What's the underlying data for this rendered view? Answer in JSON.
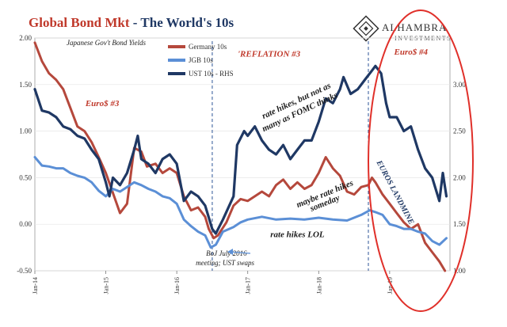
{
  "chart_data": {
    "type": "line",
    "title_part1": "Global Bond Mkt",
    "title_part2": " - The World's 10s",
    "subtitle": "Japanese Gov't Bond Yields",
    "logo": {
      "name": "ALHAMBRA",
      "sub": "INVESTMENTS"
    },
    "left_axis": {
      "ylim": [
        -0.5,
        2.0
      ],
      "ticks": [
        "2.00",
        "1.50",
        "1.00",
        "0.50",
        "0.00",
        "-0.50"
      ],
      "tick_values": [
        2.0,
        1.5,
        1.0,
        0.5,
        0.0,
        -0.5
      ]
    },
    "right_axis": {
      "ylim": [
        1.0,
        3.5
      ],
      "ticks": [
        "3.00",
        "2.50",
        "2.00",
        "1.50",
        "1.00"
      ],
      "tick_values": [
        3.0,
        2.5,
        2.0,
        1.5,
        1.0
      ]
    },
    "x_ticks": [
      {
        "label": "Jan-14",
        "t": 2014.0
      },
      {
        "label": "Jan-15",
        "t": 2015.0
      },
      {
        "label": "Jan-16",
        "t": 2016.0
      },
      {
        "label": "Jan-17",
        "t": 2017.0
      },
      {
        "label": "Jan-18",
        "t": 2018.0
      },
      {
        "label": "Jan-19",
        "t": 2019.0
      }
    ],
    "xlim": [
      2014.0,
      2019.85
    ],
    "series": [
      {
        "name": "Germany 10s",
        "color": "#b5483c",
        "axis": "left",
        "points": [
          [
            2014.0,
            1.95
          ],
          [
            2014.1,
            1.75
          ],
          [
            2014.2,
            1.62
          ],
          [
            2014.3,
            1.55
          ],
          [
            2014.4,
            1.45
          ],
          [
            2014.5,
            1.25
          ],
          [
            2014.6,
            1.05
          ],
          [
            2014.7,
            1.0
          ],
          [
            2014.8,
            0.88
          ],
          [
            2014.9,
            0.72
          ],
          [
            2015.0,
            0.55
          ],
          [
            2015.08,
            0.38
          ],
          [
            2015.2,
            0.12
          ],
          [
            2015.3,
            0.22
          ],
          [
            2015.4,
            0.82
          ],
          [
            2015.5,
            0.78
          ],
          [
            2015.58,
            0.62
          ],
          [
            2015.7,
            0.65
          ],
          [
            2015.8,
            0.55
          ],
          [
            2015.9,
            0.6
          ],
          [
            2016.0,
            0.55
          ],
          [
            2016.1,
            0.3
          ],
          [
            2016.2,
            0.15
          ],
          [
            2016.3,
            0.18
          ],
          [
            2016.4,
            0.08
          ],
          [
            2016.45,
            -0.05
          ],
          [
            2016.52,
            -0.15
          ],
          [
            2016.58,
            -0.12
          ],
          [
            2016.7,
            0.02
          ],
          [
            2016.8,
            0.2
          ],
          [
            2016.9,
            0.27
          ],
          [
            2017.0,
            0.25
          ],
          [
            2017.1,
            0.3
          ],
          [
            2017.2,
            0.35
          ],
          [
            2017.3,
            0.3
          ],
          [
            2017.4,
            0.42
          ],
          [
            2017.5,
            0.48
          ],
          [
            2017.6,
            0.38
          ],
          [
            2017.7,
            0.45
          ],
          [
            2017.8,
            0.38
          ],
          [
            2017.9,
            0.42
          ],
          [
            2018.0,
            0.55
          ],
          [
            2018.1,
            0.72
          ],
          [
            2018.2,
            0.6
          ],
          [
            2018.3,
            0.52
          ],
          [
            2018.4,
            0.35
          ],
          [
            2018.5,
            0.32
          ],
          [
            2018.6,
            0.4
          ],
          [
            2018.7,
            0.42
          ],
          [
            2018.75,
            0.5
          ],
          [
            2018.8,
            0.45
          ],
          [
            2018.9,
            0.32
          ],
          [
            2019.0,
            0.22
          ],
          [
            2019.1,
            0.12
          ],
          [
            2019.2,
            0.02
          ],
          [
            2019.3,
            -0.05
          ],
          [
            2019.4,
            0.0
          ],
          [
            2019.5,
            -0.2
          ],
          [
            2019.6,
            -0.3
          ],
          [
            2019.7,
            -0.4
          ],
          [
            2019.78,
            -0.5
          ]
        ]
      },
      {
        "name": "JGB 10s",
        "color": "#5b8fd6",
        "axis": "left",
        "points": [
          [
            2014.0,
            0.72
          ],
          [
            2014.1,
            0.63
          ],
          [
            2014.2,
            0.62
          ],
          [
            2014.3,
            0.6
          ],
          [
            2014.4,
            0.6
          ],
          [
            2014.5,
            0.55
          ],
          [
            2014.6,
            0.52
          ],
          [
            2014.7,
            0.5
          ],
          [
            2014.8,
            0.45
          ],
          [
            2014.9,
            0.36
          ],
          [
            2015.0,
            0.3
          ],
          [
            2015.1,
            0.38
          ],
          [
            2015.2,
            0.35
          ],
          [
            2015.3,
            0.4
          ],
          [
            2015.4,
            0.45
          ],
          [
            2015.5,
            0.42
          ],
          [
            2015.6,
            0.38
          ],
          [
            2015.7,
            0.35
          ],
          [
            2015.8,
            0.3
          ],
          [
            2015.9,
            0.28
          ],
          [
            2016.0,
            0.22
          ],
          [
            2016.1,
            0.05
          ],
          [
            2016.2,
            -0.02
          ],
          [
            2016.3,
            -0.08
          ],
          [
            2016.4,
            -0.12
          ],
          [
            2016.48,
            -0.25
          ],
          [
            2016.55,
            -0.22
          ],
          [
            2016.65,
            -0.08
          ],
          [
            2016.8,
            -0.03
          ],
          [
            2016.9,
            0.02
          ],
          [
            2017.0,
            0.05
          ],
          [
            2017.2,
            0.08
          ],
          [
            2017.4,
            0.05
          ],
          [
            2017.6,
            0.06
          ],
          [
            2017.8,
            0.05
          ],
          [
            2018.0,
            0.07
          ],
          [
            2018.2,
            0.05
          ],
          [
            2018.4,
            0.04
          ],
          [
            2018.6,
            0.1
          ],
          [
            2018.72,
            0.15
          ],
          [
            2018.8,
            0.13
          ],
          [
            2018.9,
            0.1
          ],
          [
            2019.0,
            0.0
          ],
          [
            2019.1,
            -0.02
          ],
          [
            2019.2,
            -0.05
          ],
          [
            2019.3,
            -0.05
          ],
          [
            2019.4,
            -0.08
          ],
          [
            2019.5,
            -0.1
          ],
          [
            2019.6,
            -0.18
          ],
          [
            2019.7,
            -0.22
          ],
          [
            2019.8,
            -0.15
          ]
        ]
      },
      {
        "name": "UST 10s - RHS",
        "color": "#1f3864",
        "axis": "right",
        "points": [
          [
            2014.0,
            2.95
          ],
          [
            2014.1,
            2.72
          ],
          [
            2014.2,
            2.7
          ],
          [
            2014.3,
            2.65
          ],
          [
            2014.4,
            2.55
          ],
          [
            2014.5,
            2.52
          ],
          [
            2014.6,
            2.45
          ],
          [
            2014.7,
            2.42
          ],
          [
            2014.8,
            2.3
          ],
          [
            2014.9,
            2.2
          ],
          [
            2015.0,
            1.95
          ],
          [
            2015.05,
            1.8
          ],
          [
            2015.1,
            2.0
          ],
          [
            2015.2,
            1.92
          ],
          [
            2015.3,
            2.05
          ],
          [
            2015.4,
            2.3
          ],
          [
            2015.45,
            2.45
          ],
          [
            2015.5,
            2.2
          ],
          [
            2015.6,
            2.15
          ],
          [
            2015.7,
            2.05
          ],
          [
            2015.8,
            2.2
          ],
          [
            2015.9,
            2.25
          ],
          [
            2016.0,
            2.15
          ],
          [
            2016.1,
            1.75
          ],
          [
            2016.2,
            1.85
          ],
          [
            2016.3,
            1.8
          ],
          [
            2016.4,
            1.7
          ],
          [
            2016.5,
            1.45
          ],
          [
            2016.55,
            1.4
          ],
          [
            2016.65,
            1.55
          ],
          [
            2016.8,
            1.8
          ],
          [
            2016.85,
            2.35
          ],
          [
            2016.95,
            2.5
          ],
          [
            2017.0,
            2.45
          ],
          [
            2017.1,
            2.55
          ],
          [
            2017.2,
            2.4
          ],
          [
            2017.3,
            2.3
          ],
          [
            2017.4,
            2.25
          ],
          [
            2017.5,
            2.35
          ],
          [
            2017.6,
            2.2
          ],
          [
            2017.7,
            2.3
          ],
          [
            2017.8,
            2.4
          ],
          [
            2017.9,
            2.4
          ],
          [
            2018.0,
            2.6
          ],
          [
            2018.1,
            2.85
          ],
          [
            2018.2,
            2.8
          ],
          [
            2018.3,
            2.95
          ],
          [
            2018.35,
            3.08
          ],
          [
            2018.45,
            2.9
          ],
          [
            2018.55,
            2.95
          ],
          [
            2018.65,
            3.05
          ],
          [
            2018.75,
            3.15
          ],
          [
            2018.8,
            3.2
          ],
          [
            2018.88,
            3.12
          ],
          [
            2018.95,
            2.8
          ],
          [
            2019.0,
            2.65
          ],
          [
            2019.1,
            2.65
          ],
          [
            2019.2,
            2.5
          ],
          [
            2019.3,
            2.55
          ],
          [
            2019.4,
            2.3
          ],
          [
            2019.5,
            2.1
          ],
          [
            2019.6,
            2.0
          ],
          [
            2019.7,
            1.75
          ],
          [
            2019.75,
            2.05
          ],
          [
            2019.8,
            1.8
          ]
        ]
      }
    ],
    "vlines": [
      2016.5,
      2018.7
    ],
    "annotations": [
      {
        "text": "Euro$ #3",
        "style": "red",
        "t": 2014.95,
        "v": 1.27
      },
      {
        "text": "'REFLATION #3",
        "style": "red",
        "t": 2017.3,
        "v": 1.8
      },
      {
        "text": "Euro$ #4",
        "style": "red",
        "t": 2019.3,
        "v": 1.82
      },
      {
        "text": "rate hikes, but not as",
        "style": "dark",
        "t": 2017.7,
        "v": 1.3,
        "rot": -25
      },
      {
        "text": "many as FOMC thinks",
        "style": "dark",
        "t": 2017.75,
        "v": 1.18,
        "rot": -25
      },
      {
        "text": "maybe rate hikes",
        "style": "dark",
        "t": 2018.1,
        "v": 0.3,
        "rot": -22
      },
      {
        "text": "someday",
        "style": "dark",
        "t": 2018.1,
        "v": 0.2,
        "rot": -22
      },
      {
        "text": "rate hikes LOL",
        "style": "dark",
        "t": 2017.7,
        "v": -0.14,
        "rot": 0
      },
      {
        "text": "BoJ July 2016",
        "style": "small",
        "t": 2016.7,
        "v": -0.34,
        "rot": 0
      },
      {
        "text": "meeting; UST swaps",
        "style": "small",
        "t": 2016.68,
        "v": -0.44,
        "rot": 0
      },
      {
        "text": "EUROS LANDMINE",
        "style": "blue",
        "t": 2019.05,
        "v": 0.33,
        "rot": 62
      }
    ]
  }
}
